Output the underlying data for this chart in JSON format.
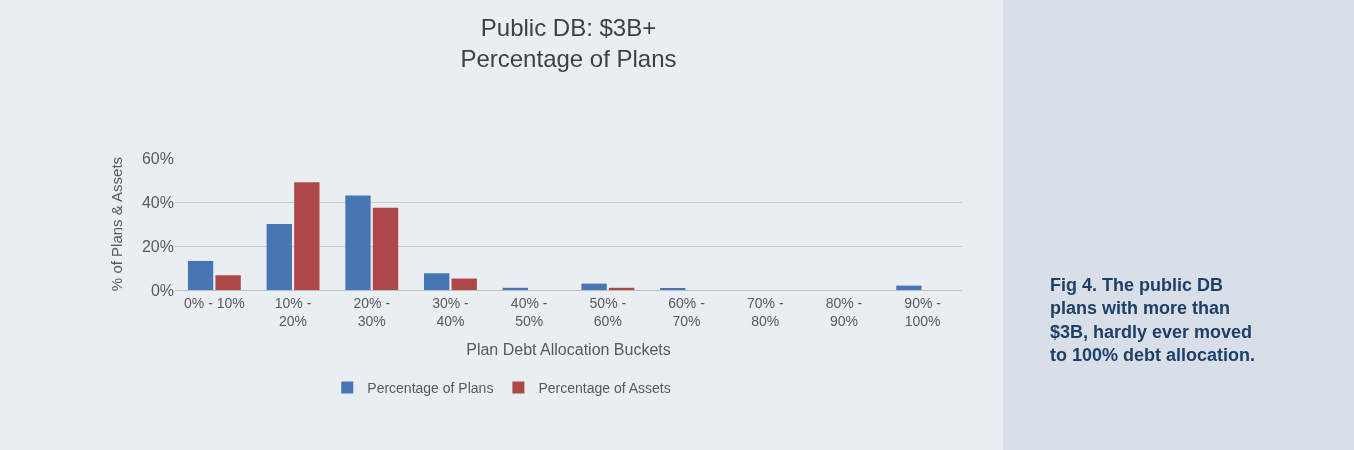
{
  "chart_data": {
    "type": "bar",
    "title": "Public DB: $3B+\nPercentage of Plans",
    "xlabel": "Plan Debt Allocation Buckets",
    "ylabel": "% of Plans & Assets",
    "categories": [
      "0% - 10%",
      "10% - 20%",
      "20% - 30%",
      "30% - 40%",
      "40% - 50%",
      "50% - 60%",
      "60% - 70%",
      "70% - 80%",
      "80% - 90%",
      "90% - 100%"
    ],
    "series": [
      {
        "name": "Percentage of Plans",
        "color": "#4677b4",
        "values": [
          13.2,
          30,
          43,
          7.6,
          1.0,
          2.9,
          0.7,
          0,
          0,
          2.0
        ]
      },
      {
        "name": "Percentage of Assets",
        "color": "#ae4848",
        "values": [
          6.7,
          49,
          37.4,
          5.2,
          0,
          1.0,
          0,
          0,
          0,
          0
        ]
      }
    ],
    "ylim": [
      0,
      60
    ],
    "yticks": [
      {
        "value": 0,
        "label": "0%"
      },
      {
        "value": 20,
        "label": "20%"
      },
      {
        "value": 40,
        "label": "40%"
      },
      {
        "value": 60,
        "label": "60%"
      }
    ],
    "grid": "y",
    "legend": "bottom",
    "annotations": [
      "Fig 4. The public DB plans with more than $3B, hardly ever moved to 100% debt allocation."
    ]
  }
}
